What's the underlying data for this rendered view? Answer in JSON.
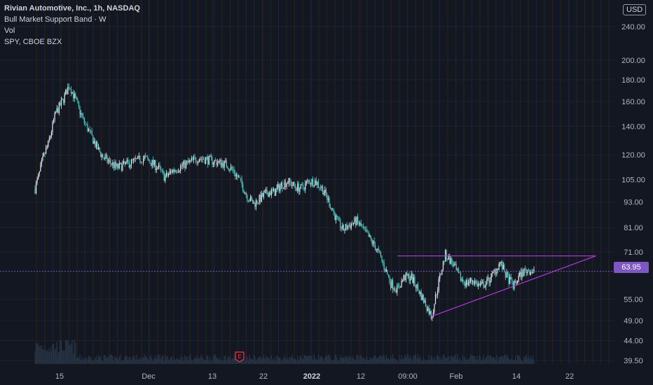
{
  "legend": {
    "symbol": "Rivian Automotive, Inc., 1h, NASDAQ",
    "line2": "Bull Market Support Band · W",
    "line3": "Vol",
    "line4": "SPY, CBOE BZX"
  },
  "currency": "USD",
  "price_tag": "63.95",
  "earnings_marker": "E",
  "colors": {
    "background": "#131722",
    "up": "#e8eaf0",
    "down": "#4dd0c8",
    "pattern": "#b23ae0",
    "price_tag": "#7e57c2",
    "volume": "#2a3a4a"
  },
  "chart_data": {
    "type": "candlestick",
    "y_scale": "log",
    "y_ticks": [
      "240.00",
      "200.00",
      "180.00",
      "160.00",
      "140.00",
      "120.00",
      "105.00",
      "93.00",
      "81.00",
      "71.00",
      "55.00",
      "49.00",
      "44.00",
      "39.50"
    ],
    "x_ticks": [
      {
        "label": "15",
        "bold": false
      },
      {
        "label": "Dec",
        "bold": false
      },
      {
        "label": "13",
        "bold": false
      },
      {
        "label": "22",
        "bold": false
      },
      {
        "label": "2022",
        "bold": true
      },
      {
        "label": "12",
        "bold": false
      },
      {
        "label": "09:00",
        "bold": false
      },
      {
        "label": "Feb",
        "bold": false
      },
      {
        "label": "14",
        "bold": false
      },
      {
        "label": "22",
        "bold": false
      }
    ],
    "last_price": 63.95,
    "price_path": [
      [
        0,
        100
      ],
      [
        0.6,
        108
      ],
      [
        1.2,
        118
      ],
      [
        2,
        128
      ],
      [
        3,
        150
      ],
      [
        4,
        160
      ],
      [
        5,
        175
      ],
      [
        6,
        160
      ],
      [
        7,
        145
      ],
      [
        8,
        135
      ],
      [
        9,
        125
      ],
      [
        10,
        118
      ],
      [
        11,
        115
      ],
      [
        12,
        112
      ],
      [
        14,
        115
      ],
      [
        16,
        118
      ],
      [
        18,
        112
      ],
      [
        19,
        106
      ],
      [
        20,
        110
      ],
      [
        22,
        114
      ],
      [
        24,
        118
      ],
      [
        26,
        116
      ],
      [
        28,
        114
      ],
      [
        29,
        110
      ],
      [
        30,
        104
      ],
      [
        31,
        96
      ],
      [
        32,
        92
      ],
      [
        33,
        95
      ],
      [
        34,
        98
      ],
      [
        35,
        98
      ],
      [
        36,
        102
      ],
      [
        37,
        104
      ],
      [
        38,
        101
      ],
      [
        39,
        100
      ],
      [
        40,
        104
      ],
      [
        41,
        104
      ],
      [
        42,
        100
      ],
      [
        43,
        93
      ],
      [
        44,
        85
      ],
      [
        45,
        80
      ],
      [
        46,
        82
      ],
      [
        47,
        84
      ],
      [
        48,
        80
      ],
      [
        49,
        76
      ],
      [
        50,
        72
      ],
      [
        51,
        66
      ],
      [
        52,
        60
      ],
      [
        53,
        58
      ],
      [
        54,
        62
      ],
      [
        55,
        62
      ],
      [
        56,
        58
      ],
      [
        57,
        54
      ],
      [
        58,
        50
      ],
      [
        59,
        60
      ],
      [
        60,
        70
      ],
      [
        61,
        67
      ],
      [
        62,
        62
      ],
      [
        63,
        60
      ],
      [
        64,
        61
      ],
      [
        65,
        59
      ],
      [
        66,
        60
      ],
      [
        67,
        63
      ],
      [
        68,
        67
      ],
      [
        69,
        62
      ],
      [
        70,
        59
      ],
      [
        71,
        63
      ],
      [
        72,
        64.5
      ],
      [
        73,
        63.95
      ]
    ],
    "pattern": {
      "type": "ascending-triangle",
      "resistance": 69.5,
      "support_start": {
        "day": 57.8,
        "price": 50.0
      },
      "support_end": {
        "day": 72.5,
        "price": 58.5
      },
      "apex_day": 82.0
    },
    "grid": true
  }
}
